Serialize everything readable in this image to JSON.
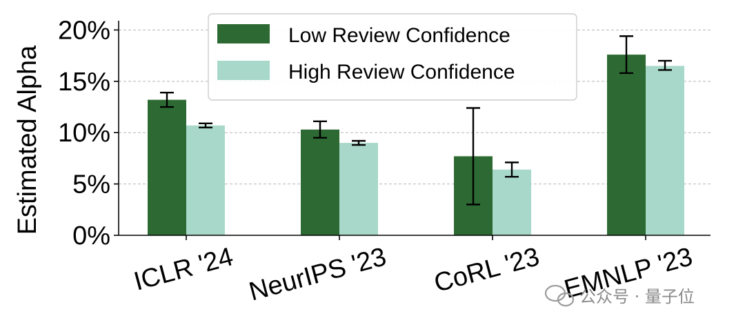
{
  "chart_data": {
    "type": "bar",
    "title": "",
    "xlabel": "",
    "ylabel": "Estimated Alpha",
    "ylim": [
      0,
      20.5
    ],
    "yticks": [
      0,
      5,
      10,
      15,
      20
    ],
    "ytick_labels": [
      "0%",
      "5%",
      "10%",
      "15%",
      "20%"
    ],
    "grid": "horizontal dashed",
    "legend_position": "top-center",
    "categories": [
      "ICLR '24",
      "NeurIPS '23",
      "CoRL '23",
      "EMNLP '23"
    ],
    "series": [
      {
        "name": "Low Review Confidence",
        "color": "#2d6a33",
        "values": [
          13.2,
          10.3,
          7.7,
          17.6
        ],
        "err_low": [
          12.5,
          9.5,
          3.0,
          15.8
        ],
        "err_high": [
          13.9,
          11.1,
          12.4,
          19.4
        ]
      },
      {
        "name": "High Review Confidence",
        "color": "#a8d8c9",
        "values": [
          10.7,
          9.0,
          6.4,
          16.5
        ],
        "err_low": [
          10.5,
          8.8,
          5.7,
          16.1
        ],
        "err_high": [
          10.9,
          9.2,
          7.1,
          17.0
        ]
      }
    ]
  },
  "watermark": {
    "text": "公众号 · 量子位"
  }
}
